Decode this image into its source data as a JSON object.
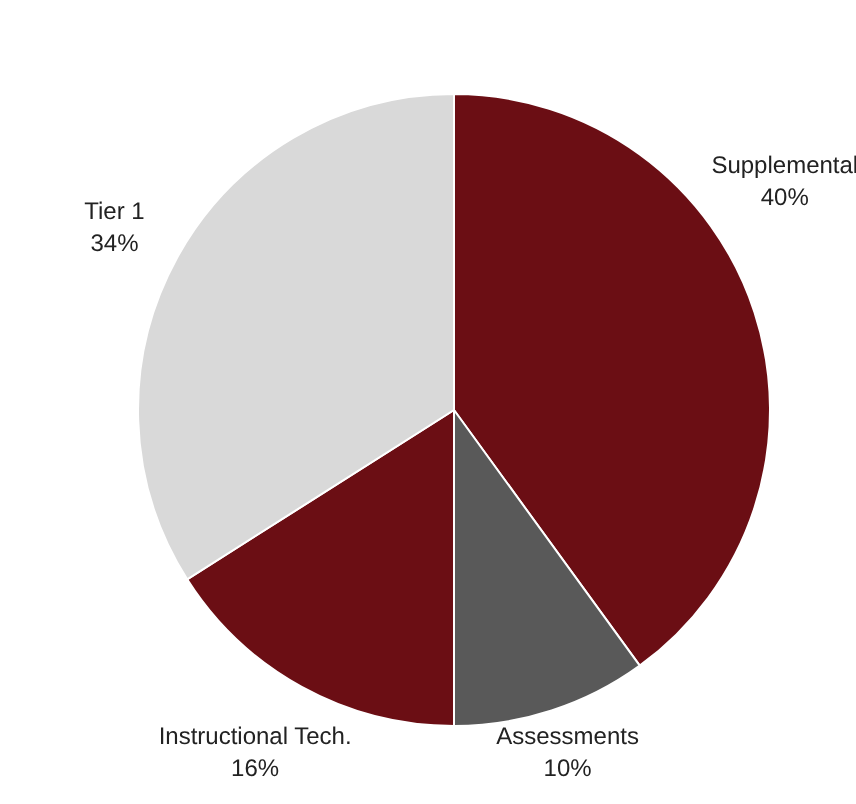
{
  "chart_data": {
    "type": "pie",
    "categories": [
      "Supplemental",
      "Assessments",
      "Instructional Tech.",
      "Tier 1"
    ],
    "values": [
      40,
      10,
      16,
      34
    ],
    "colors": [
      "#6b0e14",
      "#595959",
      "#6b0e14",
      "#d9d9d9"
    ],
    "value_labels": [
      "40%",
      "10%",
      "16%",
      "34%"
    ]
  }
}
